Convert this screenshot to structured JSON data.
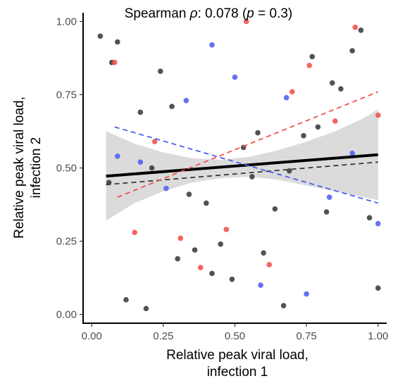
{
  "chart_data": {
    "type": "scatter",
    "title_parts": {
      "lead": "Spearman ",
      "rho": "ρ",
      "mid": ": 0.078 (",
      "p": "p",
      "tail": " = 0.3)"
    },
    "xlabel_lines": [
      "Relative peak viral load,",
      "infection 1"
    ],
    "ylabel_lines": [
      "Relative peak viral load,",
      "infection 2"
    ],
    "xlim": [
      -0.03,
      1.03
    ],
    "ylim": [
      -0.03,
      1.03
    ],
    "x_ticks": [
      {
        "value": 0,
        "label": "0.00"
      },
      {
        "value": 0.25,
        "label": "0.25"
      },
      {
        "value": 0.5,
        "label": "0.50"
      },
      {
        "value": 0.75,
        "label": "0.75"
      },
      {
        "value": 1,
        "label": "1.00"
      }
    ],
    "y_ticks": [
      {
        "value": 0,
        "label": "0.00"
      },
      {
        "value": 0.25,
        "label": "0.25"
      },
      {
        "value": 0.5,
        "label": "0.50"
      },
      {
        "value": 0.75,
        "label": "0.75"
      },
      {
        "value": 1,
        "label": "1.00"
      }
    ],
    "grid": false,
    "colors": {
      "black": "#3a3a3a",
      "red": "#f0504a",
      "blue": "#4b5ff0",
      "band": "#d9d9d9"
    },
    "series": [
      {
        "color": "black",
        "points": [
          [
            0.03,
            0.95
          ],
          [
            0.09,
            0.93
          ],
          [
            0.07,
            0.86
          ],
          [
            0.24,
            0.83
          ],
          [
            0.28,
            0.71
          ],
          [
            0.17,
            0.69
          ],
          [
            0.06,
            0.45
          ],
          [
            0.21,
            0.5
          ],
          [
            0.34,
            0.41
          ],
          [
            0.4,
            0.38
          ],
          [
            0.53,
            0.57
          ],
          [
            0.56,
            0.47
          ],
          [
            0.58,
            0.62
          ],
          [
            0.64,
            0.36
          ],
          [
            0.69,
            0.49
          ],
          [
            0.74,
            0.61
          ],
          [
            0.77,
            0.88
          ],
          [
            0.79,
            0.64
          ],
          [
            0.84,
            0.79
          ],
          [
            0.87,
            0.77
          ],
          [
            0.82,
            0.35
          ],
          [
            0.91,
            0.9
          ],
          [
            0.94,
            0.97
          ],
          [
            0.97,
            0.33
          ],
          [
            0.3,
            0.19
          ],
          [
            0.36,
            0.22
          ],
          [
            0.42,
            0.14
          ],
          [
            0.45,
            0.24
          ],
          [
            0.49,
            0.12
          ],
          [
            0.6,
            0.21
          ],
          [
            0.12,
            0.05
          ],
          [
            0.19,
            0.02
          ],
          [
            0.67,
            0.03
          ],
          [
            1.0,
            0.09
          ]
        ]
      },
      {
        "color": "red",
        "points": [
          [
            0.08,
            0.86
          ],
          [
            0.54,
            1.0
          ],
          [
            0.92,
            0.98
          ],
          [
            0.76,
            0.85
          ],
          [
            0.7,
            0.76
          ],
          [
            0.85,
            0.66
          ],
          [
            1.0,
            0.68
          ],
          [
            0.22,
            0.59
          ],
          [
            0.15,
            0.28
          ],
          [
            0.31,
            0.26
          ],
          [
            0.47,
            0.29
          ],
          [
            0.38,
            0.16
          ],
          [
            0.62,
            0.17
          ]
        ]
      },
      {
        "color": "blue",
        "points": [
          [
            0.42,
            0.92
          ],
          [
            0.5,
            0.81
          ],
          [
            0.68,
            0.74
          ],
          [
            0.33,
            0.73
          ],
          [
            0.09,
            0.54
          ],
          [
            0.17,
            0.52
          ],
          [
            0.26,
            0.43
          ],
          [
            0.91,
            0.55
          ],
          [
            0.83,
            0.4
          ],
          [
            1.0,
            0.31
          ],
          [
            0.59,
            0.1
          ],
          [
            0.75,
            0.07
          ]
        ]
      }
    ],
    "fits": [
      {
        "color": "black",
        "style": "solid",
        "x": [
          0.05,
          1.0
        ],
        "y": [
          0.472,
          0.545
        ]
      },
      {
        "color": "black",
        "style": "dashed",
        "x": [
          0.05,
          1.0
        ],
        "y": [
          0.443,
          0.52
        ]
      },
      {
        "color": "red",
        "style": "dashed",
        "x": [
          0.09,
          1.0
        ],
        "y": [
          0.4,
          0.76
        ]
      },
      {
        "color": "blue",
        "style": "dashed",
        "x": [
          0.08,
          1.0
        ],
        "y": [
          0.64,
          0.38
        ]
      }
    ],
    "confidence_band": {
      "x": [
        0.05,
        0.15,
        0.25,
        0.35,
        0.45,
        0.55,
        0.65,
        0.75,
        0.85,
        0.95,
        1.0
      ],
      "lower": [
        0.32,
        0.38,
        0.42,
        0.45,
        0.465,
        0.47,
        0.46,
        0.44,
        0.42,
        0.4,
        0.39
      ],
      "upper": [
        0.625,
        0.583,
        0.553,
        0.533,
        0.528,
        0.538,
        0.56,
        0.59,
        0.625,
        0.67,
        0.7
      ]
    }
  }
}
